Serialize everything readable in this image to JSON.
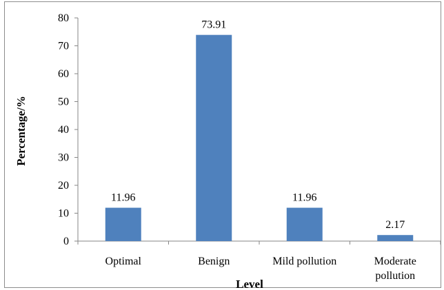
{
  "chart_data": {
    "type": "bar",
    "categories": [
      [
        "Optimal"
      ],
      [
        "Benign"
      ],
      [
        "Mild pollution"
      ],
      [
        "Moderate",
        "pollution"
      ]
    ],
    "values": [
      11.96,
      73.91,
      11.96,
      2.17
    ],
    "data_labels": [
      "11.96",
      "73.91",
      "11.96",
      "2.17"
    ],
    "xlabel": "Level",
    "ylabel": "Percentage/%",
    "ylim": [
      0,
      80
    ],
    "yticks": [
      "0",
      "10",
      "20",
      "30",
      "40",
      "50",
      "60",
      "70",
      "80"
    ],
    "grid": false,
    "legend": "none",
    "bar_color": "#4f81bd"
  }
}
